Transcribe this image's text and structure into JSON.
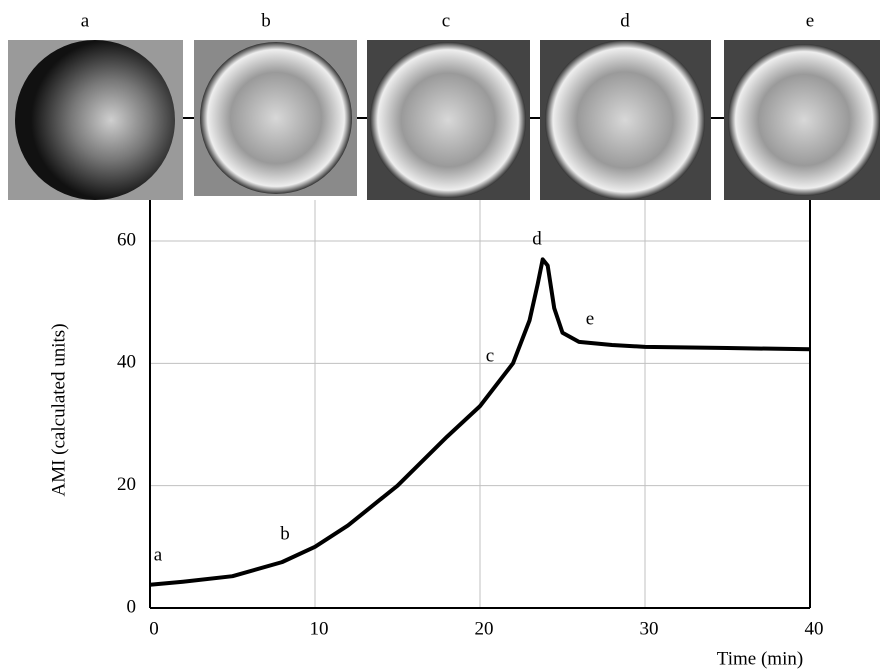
{
  "chart_data": {
    "type": "line",
    "x_label": "Time (min)",
    "y_label": "AMI (calculated units)",
    "x": [
      0,
      2,
      5,
      8,
      10,
      12,
      15,
      18,
      20,
      22,
      23,
      23.5,
      23.8,
      24.1,
      24.5,
      25,
      26,
      28,
      30,
      35,
      40
    ],
    "values": [
      3.8,
      4.3,
      5.2,
      7.5,
      10,
      13.5,
      20,
      28,
      33,
      40,
      47,
      53,
      57,
      56,
      49,
      45,
      43.5,
      43,
      42.7,
      42.5,
      42.3
    ],
    "color": "#000000",
    "xlim": [
      0,
      40
    ],
    "ylim": [
      0,
      60
    ],
    "xticks": [
      0,
      10,
      20,
      30,
      40
    ],
    "yticks": [
      0,
      20,
      40,
      60
    ],
    "grid": true,
    "annotations": [
      "a",
      "b",
      "c",
      "d",
      "e"
    ],
    "photo_labels": [
      "a",
      "b",
      "c",
      "d",
      "e"
    ]
  }
}
